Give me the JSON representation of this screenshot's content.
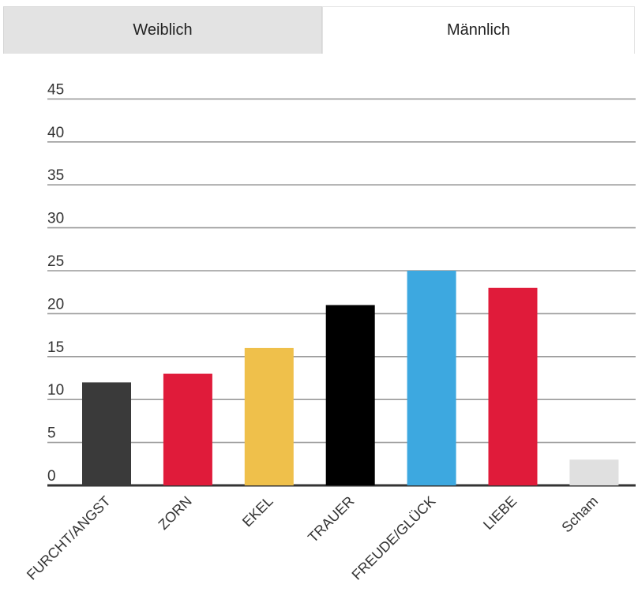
{
  "tabs": [
    {
      "label": "Weiblich",
      "active": false
    },
    {
      "label": "Männlich",
      "active": true
    }
  ],
  "chart_data": {
    "type": "bar",
    "title": "",
    "xlabel": "",
    "ylabel": "",
    "ylim": [
      0,
      45
    ],
    "yticks": [
      0,
      5,
      10,
      15,
      20,
      25,
      30,
      35,
      40,
      45
    ],
    "grid": true,
    "categories": [
      "FURCHT/ANGST",
      "ZORN",
      "EKEL",
      "TRAUER",
      "FREUDE/GLÜCK",
      "LIEBE",
      "Scham"
    ],
    "values": [
      12,
      13,
      16,
      21,
      25,
      23,
      3
    ],
    "colors": [
      "#3a3a3a",
      "#e01b3a",
      "#efc04b",
      "#000000",
      "#3da8e0",
      "#e01b3a",
      "#e0e0e0"
    ]
  }
}
